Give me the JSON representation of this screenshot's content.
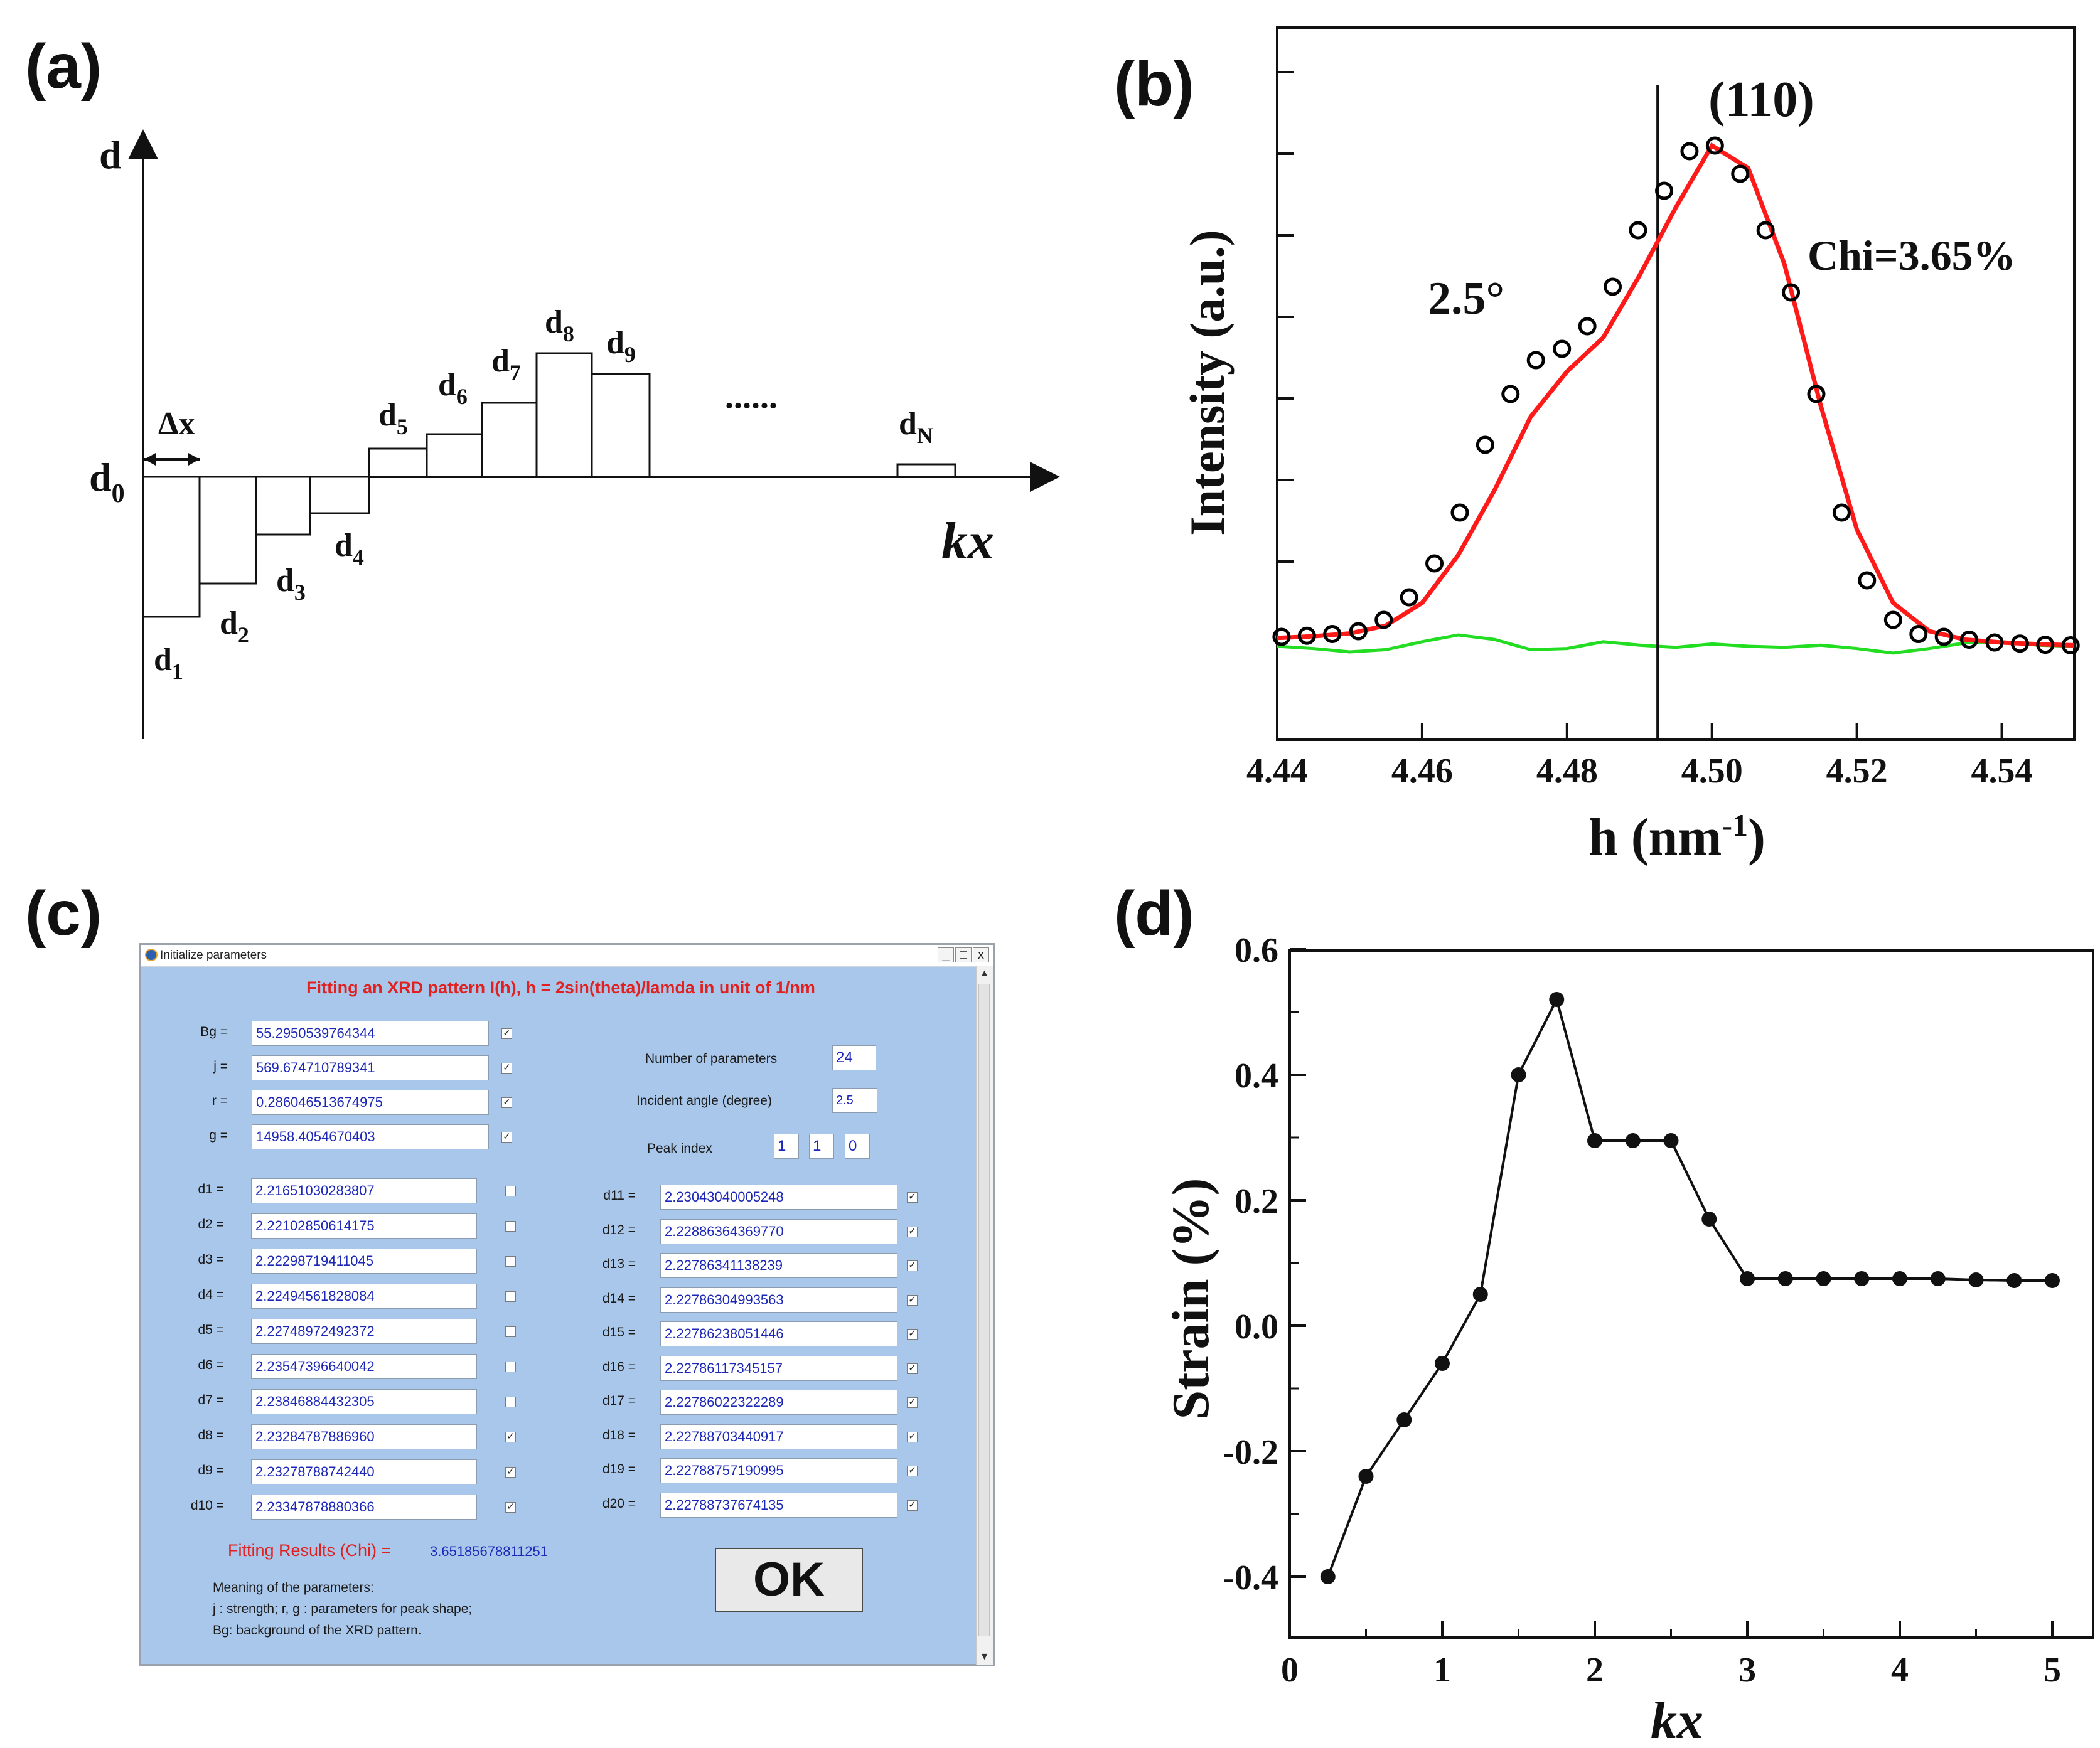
{
  "panel_labels": {
    "a": "(a)",
    "b": "(b)",
    "c": "(c)",
    "d": "(d)"
  },
  "panel_a": {
    "y_axis_label": "d",
    "x_axis_label": "kx",
    "baseline_label": "d",
    "baseline_sub": "0",
    "dx_label": "Δx",
    "ellipsis": "......",
    "steps": [
      {
        "base": "d",
        "sub": "1"
      },
      {
        "base": "d",
        "sub": "2"
      },
      {
        "base": "d",
        "sub": "3"
      },
      {
        "base": "d",
        "sub": "4"
      },
      {
        "base": "d",
        "sub": "5"
      },
      {
        "base": "d",
        "sub": "6"
      },
      {
        "base": "d",
        "sub": "7"
      },
      {
        "base": "d",
        "sub": "8"
      },
      {
        "base": "d",
        "sub": "9"
      }
    ],
    "last_step": {
      "base": "d",
      "sub": "N"
    }
  },
  "chart_data": [
    {
      "type": "scatter",
      "panel": "b",
      "ylabel": "Intensity (a.u.)",
      "xlabel_base": "h (nm",
      "xlabel_sup": "-1",
      "xlabel_end": ")",
      "xlim": [
        4.44,
        4.55
      ],
      "x_ticks": [
        "4.44",
        "4.46",
        "4.48",
        "4.50",
        "4.52",
        "4.54"
      ],
      "y_tick_count": 7,
      "annotations": {
        "peak": "(110)",
        "angle": "2.5°",
        "chi": "Chi=3.65%"
      },
      "vertical_line_x": 4.4925,
      "colors": {
        "points": "#000000",
        "fit": "#ff1a1a",
        "residual": "#22dd22"
      },
      "series": [
        {
          "kind": "points",
          "x": [
            4.4406,
            4.4441,
            4.4476,
            4.4512,
            4.4547,
            4.4582,
            4.4617,
            4.4652,
            4.4687,
            4.4722,
            4.4757,
            4.4793,
            4.4828,
            4.4863,
            4.4898,
            4.4934,
            4.4969,
            4.5004,
            4.5039,
            4.5074,
            4.5109,
            4.5144,
            4.5179,
            4.5214,
            4.525,
            4.5285,
            4.532,
            4.5355,
            4.539,
            4.5425,
            4.546,
            4.5495
          ],
          "y": [
            0.11,
            0.112,
            0.115,
            0.12,
            0.14,
            0.18,
            0.24,
            0.33,
            0.45,
            0.54,
            0.6,
            0.62,
            0.66,
            0.73,
            0.83,
            0.9,
            0.97,
            0.98,
            0.93,
            0.83,
            0.72,
            0.54,
            0.33,
            0.21,
            0.14,
            0.115,
            0.11,
            0.105,
            0.1,
            0.098,
            0.096,
            0.095
          ]
        },
        {
          "kind": "fit",
          "x": [
            4.44,
            4.445,
            4.45,
            4.455,
            4.46,
            4.465,
            4.47,
            4.475,
            4.48,
            4.485,
            4.49,
            4.495,
            4.5,
            4.505,
            4.51,
            4.515,
            4.52,
            4.525,
            4.53,
            4.535,
            4.54,
            4.545,
            4.55
          ],
          "y": [
            0.108,
            0.111,
            0.116,
            0.13,
            0.17,
            0.255,
            0.37,
            0.5,
            0.58,
            0.64,
            0.75,
            0.87,
            0.98,
            0.94,
            0.77,
            0.52,
            0.3,
            0.17,
            0.12,
            0.105,
            0.1,
            0.097,
            0.095
          ]
        },
        {
          "kind": "residual",
          "x": [
            4.44,
            4.445,
            4.45,
            4.455,
            4.46,
            4.465,
            4.47,
            4.475,
            4.48,
            4.485,
            4.49,
            4.495,
            4.5,
            4.505,
            4.51,
            4.515,
            4.52,
            4.525,
            4.53,
            4.535,
            4.54,
            4.545,
            4.55
          ],
          "y": [
            0.0,
            -0.002,
            -0.005,
            -0.003,
            0.004,
            0.01,
            0.006,
            -0.003,
            -0.002,
            0.004,
            0.001,
            -0.001,
            0.002,
            0.0,
            -0.001,
            0.001,
            -0.002,
            -0.006,
            -0.002,
            0.003,
            0.004,
            0.001,
            0.0
          ]
        }
      ]
    },
    {
      "type": "line",
      "panel": "d",
      "ylabel": "Strain (%)",
      "xlabel": "kx",
      "xlim": [
        0,
        5.3
      ],
      "ylim": [
        -0.5,
        0.6
      ],
      "x_ticks": [
        "0",
        "1",
        "2",
        "3",
        "4",
        "5"
      ],
      "y_ticks": [
        "-0.4",
        "-0.2",
        "0.0",
        "0.2",
        "0.4",
        "0.6"
      ],
      "color": "#000000",
      "x": [
        0.25,
        0.5,
        0.75,
        1.0,
        1.25,
        1.5,
        1.75,
        2.0,
        2.25,
        2.5,
        2.75,
        3.0,
        3.25,
        3.5,
        3.75,
        4.0,
        4.25,
        4.5,
        4.75,
        5.0
      ],
      "y": [
        -0.4,
        -0.24,
        -0.15,
        -0.06,
        0.05,
        0.4,
        0.52,
        0.295,
        0.295,
        0.295,
        0.17,
        0.075,
        0.075,
        0.075,
        0.075,
        0.075,
        0.075,
        0.073,
        0.072,
        0.072
      ]
    }
  ],
  "dialog": {
    "title": "Initialize parameters",
    "window_buttons": [
      "_",
      "□",
      "x"
    ],
    "heading": "Fitting an XRD pattern I(h), h = 2sin(theta)/lamda in unit of 1/nm",
    "params": [
      {
        "label": "Bg =",
        "value": "55.2950539764344",
        "checked": true
      },
      {
        "label": "j =",
        "value": "569.674710789341",
        "checked": true
      },
      {
        "label": "r =",
        "value": "0.286046513674975",
        "checked": true
      },
      {
        "label": "g =",
        "value": "14958.4054670403",
        "checked": true
      }
    ],
    "num_params_label": "Number of parameters",
    "num_params_value": "24",
    "incident_label": "Incident angle (degree)",
    "incident_value": "2.5",
    "peak_label": "Peak index",
    "peak_index": [
      "1",
      "1",
      "0"
    ],
    "d_left": [
      {
        "label": "d1 =",
        "value": "2.21651030283807",
        "checked": false
      },
      {
        "label": "d2 =",
        "value": "2.22102850614175",
        "checked": false
      },
      {
        "label": "d3 =",
        "value": "2.22298719411045",
        "checked": false
      },
      {
        "label": "d4 =",
        "value": "2.22494561828084",
        "checked": false
      },
      {
        "label": "d5 =",
        "value": "2.22748972492372",
        "checked": false
      },
      {
        "label": "d6 =",
        "value": "2.23547396640042",
        "checked": false
      },
      {
        "label": "d7 =",
        "value": "2.23846884432305",
        "checked": false
      },
      {
        "label": "d8 =",
        "value": "2.23284787886960",
        "checked": true
      },
      {
        "label": "d9 =",
        "value": "2.23278788742440",
        "checked": true
      },
      {
        "label": "d10 =",
        "value": "2.23347878880366",
        "checked": true
      }
    ],
    "d_right": [
      {
        "label": "d11 =",
        "value": "2.23043040005248",
        "checked": true
      },
      {
        "label": "d12 =",
        "value": "2.22886364369770",
        "checked": true
      },
      {
        "label": "d13 =",
        "value": "2.22786341138239",
        "checked": true
      },
      {
        "label": "d14 =",
        "value": "2.22786304993563",
        "checked": true
      },
      {
        "label": "d15 =",
        "value": "2.22786238051446",
        "checked": true
      },
      {
        "label": "d16 =",
        "value": "2.22786117345157",
        "checked": true
      },
      {
        "label": "d17 =",
        "value": "2.22786022322289",
        "checked": true
      },
      {
        "label": "d18 =",
        "value": "2.22788703440917",
        "checked": true
      },
      {
        "label": "d19 =",
        "value": "2.22788757190995",
        "checked": true
      },
      {
        "label": "d20 =",
        "value": "2.22788737674135",
        "checked": true
      }
    ],
    "fit_label": "Fitting Results (Chi) =",
    "fit_value": "3.65185678811251",
    "ok_label": "OK",
    "notes": [
      "Meaning of the parameters:",
      "j : strength; r, g : parameters for peak shape;",
      "Bg: background of the XRD pattern."
    ]
  }
}
